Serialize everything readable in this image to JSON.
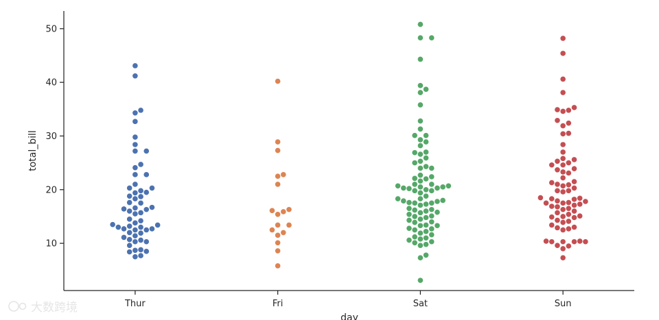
{
  "chart_data": {
    "type": "scatter",
    "subtype": "swarm",
    "title": "",
    "xlabel": "day",
    "ylabel": "total_bill",
    "categories": [
      "Thur",
      "Fri",
      "Sat",
      "Sun"
    ],
    "colors": [
      "#4c72b0",
      "#dd8452",
      "#55a868",
      "#c44e52"
    ],
    "y_ticks": [
      10,
      20,
      30,
      40,
      50
    ],
    "ylim": [
      1.2,
      53.3
    ],
    "grid": false,
    "legend": "none",
    "series": [
      {
        "category": "Thur",
        "values": [
          43.1,
          41.2,
          34.8,
          34.3,
          32.7,
          29.8,
          28.4,
          27.2,
          27.2,
          24.7,
          24.1,
          22.8,
          22.8,
          21.0,
          20.3,
          20.3,
          19.8,
          19.5,
          19.4,
          18.8,
          18.7,
          18.3,
          17.6,
          17.5,
          16.7,
          16.6,
          16.4,
          16.3,
          16.0,
          15.7,
          15.5,
          14.5,
          14.2,
          13.8,
          13.5,
          13.4,
          13.2,
          13.0,
          13.0,
          12.7,
          12.7,
          12.5,
          12.5,
          12.0,
          11.9,
          11.4,
          11.1,
          10.7,
          10.6,
          10.3,
          10.3,
          9.6,
          8.8,
          8.7,
          8.5,
          8.4,
          7.7,
          7.5
        ]
      },
      {
        "category": "Fri",
        "values": [
          40.2,
          28.9,
          27.3,
          22.8,
          22.5,
          21.0,
          16.3,
          16.1,
          15.9,
          15.4,
          13.4,
          13.4,
          12.5,
          12.0,
          11.5,
          10.1,
          8.6,
          5.8
        ]
      },
      {
        "category": "Sat",
        "values": [
          50.8,
          48.3,
          48.3,
          44.3,
          39.4,
          38.7,
          38.1,
          35.8,
          32.8,
          31.3,
          30.1,
          30.1,
          29.3,
          28.9,
          28.2,
          27.0,
          26.9,
          26.6,
          25.9,
          25.3,
          25.0,
          24.3,
          24.0,
          24.0,
          22.7,
          22.4,
          22.1,
          22.0,
          21.6,
          21.0,
          21.0,
          20.7,
          20.7,
          20.5,
          20.5,
          20.3,
          20.3,
          20.2,
          20.0,
          19.8,
          19.8,
          19.4,
          18.8,
          18.3,
          18.3,
          18.0,
          17.9,
          17.8,
          17.6,
          17.5,
          17.5,
          17.3,
          17.1,
          16.5,
          16.3,
          16.2,
          16.0,
          15.8,
          15.7,
          15.4,
          15.1,
          15.0,
          14.8,
          14.5,
          14.3,
          14.0,
          13.9,
          13.4,
          13.3,
          13.3,
          12.8,
          12.7,
          12.5,
          12.2,
          11.9,
          11.6,
          11.2,
          11.0,
          10.8,
          10.6,
          10.3,
          10.1,
          9.8,
          9.6,
          7.8,
          7.3,
          3.1
        ]
      },
      {
        "category": "Sun",
        "values": [
          48.2,
          45.4,
          40.6,
          38.1,
          35.3,
          34.9,
          34.8,
          34.6,
          32.9,
          32.4,
          31.9,
          30.5,
          30.4,
          28.4,
          27.0,
          25.8,
          25.6,
          25.3,
          25.0,
          24.6,
          24.6,
          23.9,
          23.7,
          23.3,
          23.1,
          22.2,
          21.5,
          21.3,
          21.0,
          20.9,
          20.7,
          20.3,
          19.8,
          19.8,
          19.6,
          18.5,
          18.4,
          18.3,
          18.2,
          17.9,
          17.8,
          17.6,
          17.5,
          17.5,
          17.3,
          17.1,
          16.9,
          16.8,
          16.5,
          16.3,
          16.0,
          15.7,
          15.4,
          15.1,
          15.0,
          14.9,
          14.8,
          14.3,
          14.1,
          13.9,
          13.4,
          13.0,
          12.9,
          12.7,
          12.5,
          10.4,
          10.4,
          10.3,
          10.3,
          10.3,
          10.3,
          9.6,
          9.5,
          9.0,
          7.3
        ]
      }
    ]
  },
  "watermark": {
    "logo_text": "大数跨境"
  }
}
